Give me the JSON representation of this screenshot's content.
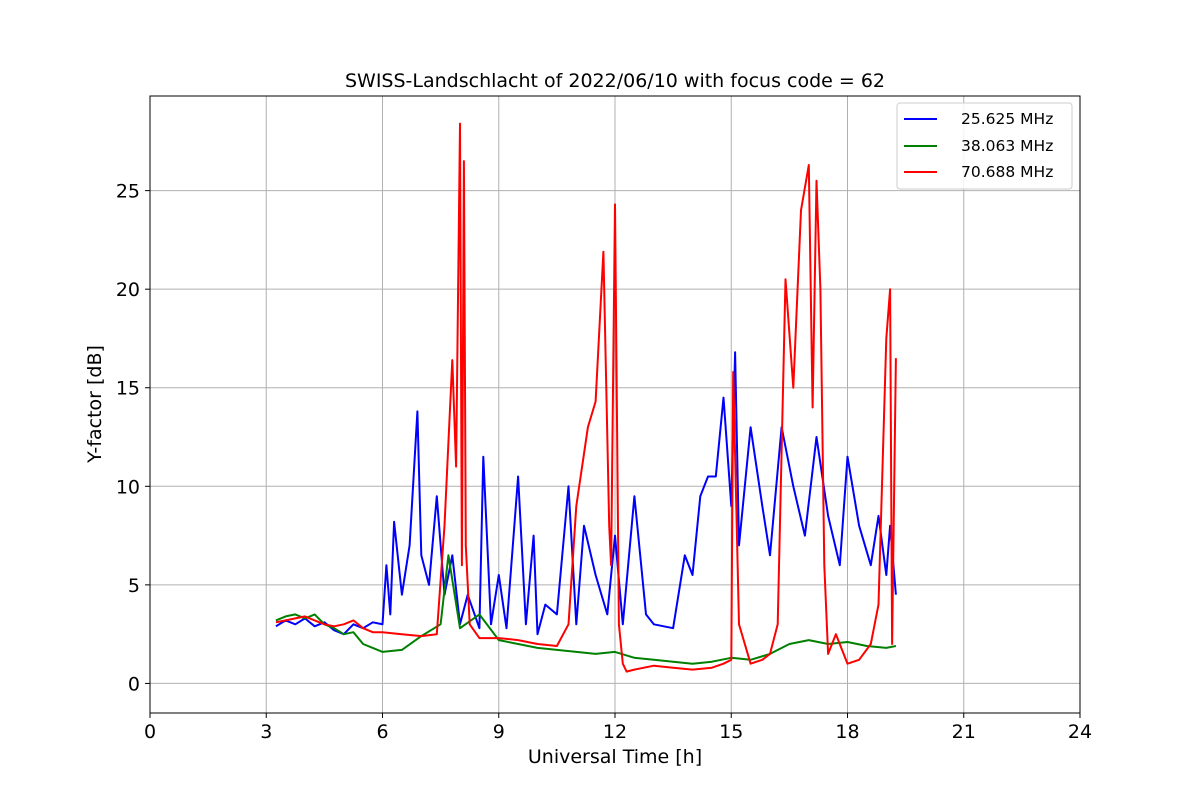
{
  "chart_data": {
    "type": "line",
    "title": "SWISS-Landschlacht of 2022/06/10 with focus code = 62",
    "xlabel": "Universal Time [h]",
    "ylabel": "Y-factor [dB]",
    "xlim": [
      0,
      24
    ],
    "ylim": [
      -1.5,
      29.8
    ],
    "xticks": [
      0,
      3,
      6,
      9,
      12,
      15,
      18,
      21,
      24
    ],
    "yticks": [
      0,
      5,
      10,
      15,
      20,
      25
    ],
    "grid": true,
    "legend_position": "top-right",
    "series": [
      {
        "name": "25.625 MHz",
        "color": "#0000ff",
        "x": [
          3.25,
          3.5,
          3.75,
          4.0,
          4.25,
          4.5,
          4.75,
          5.0,
          5.25,
          5.5,
          5.75,
          6.0,
          6.1,
          6.2,
          6.3,
          6.5,
          6.7,
          6.9,
          7.0,
          7.2,
          7.4,
          7.6,
          7.8,
          8.0,
          8.2,
          8.5,
          8.6,
          8.8,
          9.0,
          9.2,
          9.5,
          9.7,
          9.9,
          10.0,
          10.2,
          10.5,
          10.8,
          11.0,
          11.2,
          11.5,
          11.8,
          12.0,
          12.2,
          12.5,
          12.8,
          13.0,
          13.5,
          13.8,
          14.0,
          14.2,
          14.4,
          14.6,
          14.8,
          15.0,
          15.1,
          15.2,
          15.5,
          15.8,
          16.0,
          16.3,
          16.6,
          16.9,
          17.2,
          17.5,
          17.8,
          18.0,
          18.3,
          18.6,
          18.8,
          19.0,
          19.1,
          19.25
        ],
        "y": [
          2.9,
          3.2,
          3.0,
          3.3,
          2.9,
          3.1,
          2.7,
          2.5,
          3.0,
          2.8,
          3.1,
          3.0,
          6.0,
          3.5,
          8.2,
          4.5,
          7.0,
          13.8,
          6.5,
          5.0,
          9.5,
          4.5,
          6.5,
          3.0,
          4.5,
          2.8,
          11.5,
          3.0,
          5.5,
          2.8,
          10.5,
          3.0,
          7.5,
          2.5,
          4.0,
          3.5,
          10.0,
          3.0,
          8.0,
          5.5,
          3.5,
          7.5,
          3.0,
          9.5,
          3.5,
          3.0,
          2.8,
          6.5,
          5.5,
          9.5,
          10.5,
          10.5,
          14.5,
          9.0,
          16.8,
          7.0,
          13.0,
          9.0,
          6.5,
          13.0,
          10.0,
          7.5,
          12.5,
          8.5,
          6.0,
          11.5,
          8.0,
          6.0,
          8.5,
          5.5,
          8.0,
          4.5
        ]
      },
      {
        "name": "38.063 MHz",
        "color": "#008000",
        "x": [
          3.25,
          3.5,
          3.75,
          4.0,
          4.25,
          4.5,
          4.75,
          5.0,
          5.25,
          5.5,
          5.75,
          6.0,
          6.5,
          7.0,
          7.5,
          7.7,
          8.0,
          8.5,
          9.0,
          9.5,
          10.0,
          10.5,
          11.0,
          11.5,
          12.0,
          12.5,
          13.0,
          13.5,
          14.0,
          14.5,
          15.0,
          15.5,
          16.0,
          16.5,
          17.0,
          17.5,
          18.0,
          18.5,
          19.0,
          19.25
        ],
        "y": [
          3.2,
          3.4,
          3.5,
          3.3,
          3.5,
          3.0,
          2.8,
          2.5,
          2.6,
          2.0,
          1.8,
          1.6,
          1.7,
          2.4,
          3.0,
          6.5,
          2.8,
          3.5,
          2.2,
          2.0,
          1.8,
          1.7,
          1.6,
          1.5,
          1.6,
          1.3,
          1.2,
          1.1,
          1.0,
          1.1,
          1.3,
          1.2,
          1.5,
          2.0,
          2.2,
          2.0,
          2.1,
          1.9,
          1.8,
          1.9
        ]
      },
      {
        "name": "70.688 MHz",
        "color": "#ff0000",
        "x": [
          3.25,
          3.5,
          3.75,
          4.0,
          4.25,
          4.5,
          4.75,
          5.0,
          5.25,
          5.5,
          5.75,
          6.0,
          6.5,
          7.0,
          7.4,
          7.6,
          7.8,
          7.9,
          8.0,
          8.05,
          8.1,
          8.15,
          8.25,
          8.5,
          9.0,
          9.5,
          10.0,
          10.5,
          10.8,
          11.0,
          11.3,
          11.5,
          11.7,
          11.85,
          11.9,
          12.0,
          12.1,
          12.2,
          12.3,
          12.5,
          13.0,
          13.5,
          14.0,
          14.5,
          14.8,
          15.0,
          15.05,
          15.2,
          15.5,
          15.8,
          16.0,
          16.2,
          16.4,
          16.6,
          16.8,
          17.0,
          17.1,
          17.2,
          17.3,
          17.4,
          17.5,
          17.7,
          18.0,
          18.3,
          18.6,
          18.8,
          19.0,
          19.1,
          19.15,
          19.25
        ],
        "y": [
          3.1,
          3.2,
          3.3,
          3.4,
          3.2,
          3.0,
          2.9,
          3.0,
          3.2,
          2.8,
          2.6,
          2.6,
          2.5,
          2.4,
          2.5,
          8.0,
          16.4,
          11.0,
          28.4,
          6.0,
          26.5,
          7.0,
          3.0,
          2.3,
          2.3,
          2.2,
          2.0,
          1.9,
          3.0,
          9.0,
          13.0,
          14.3,
          21.9,
          8.0,
          6.0,
          24.3,
          3.0,
          1.0,
          0.6,
          0.7,
          0.9,
          0.8,
          0.7,
          0.8,
          1.0,
          1.2,
          15.8,
          3.0,
          1.0,
          1.2,
          1.5,
          3.0,
          20.5,
          15.0,
          24.0,
          26.3,
          14.0,
          25.5,
          20.0,
          6.0,
          1.5,
          2.5,
          1.0,
          1.2,
          2.0,
          4.0,
          17.5,
          20.0,
          2.0,
          16.5
        ]
      }
    ]
  }
}
